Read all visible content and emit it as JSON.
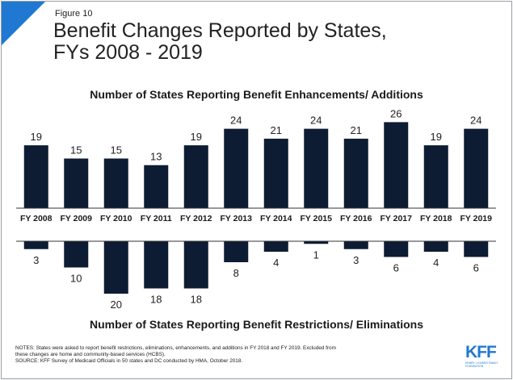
{
  "header": {
    "figure_label": "Figure 10",
    "title_line1": "Benefit Changes Reported by States,",
    "title_line2": "FYs 2008 - 2019"
  },
  "chart_data": {
    "type": "bar",
    "categories": [
      "FY 2008",
      "FY 2009",
      "FY 2010",
      "FY 2011",
      "FY 2012",
      "FY 2013",
      "FY 2014",
      "FY 2015",
      "FY 2016",
      "FY 2017",
      "FY 2018",
      "FY 2019"
    ],
    "series": [
      {
        "name": "Number of States Reporting Benefit Enhancements/ Additions",
        "values": [
          19,
          15,
          15,
          13,
          19,
          24,
          21,
          24,
          21,
          26,
          19,
          24
        ],
        "direction": "up"
      },
      {
        "name": "Number of States Reporting Benefit Restrictions/ Eliminations",
        "values": [
          3,
          10,
          20,
          18,
          18,
          8,
          4,
          1,
          3,
          6,
          4,
          6
        ],
        "direction": "down"
      }
    ],
    "bar_color": "#0d1b33",
    "grid": false
  },
  "footer": {
    "notes_line1": "NOTES: States were asked to report benefit restrictions, eliminations, enhancements, and additions in FY 2018 and FY 2019. Excluded from",
    "notes_line2": "these changes are home and community-based services (HCBS).",
    "source": "SOURCE: KFF Survey of Medicaid Officials in 50 states and DC conducted by HMA, October 2018.",
    "logo": "KFF",
    "logo_sub": "HENRY J KAISER FAMILY FOUNDATION",
    "accent_color": "#1f78d1"
  }
}
